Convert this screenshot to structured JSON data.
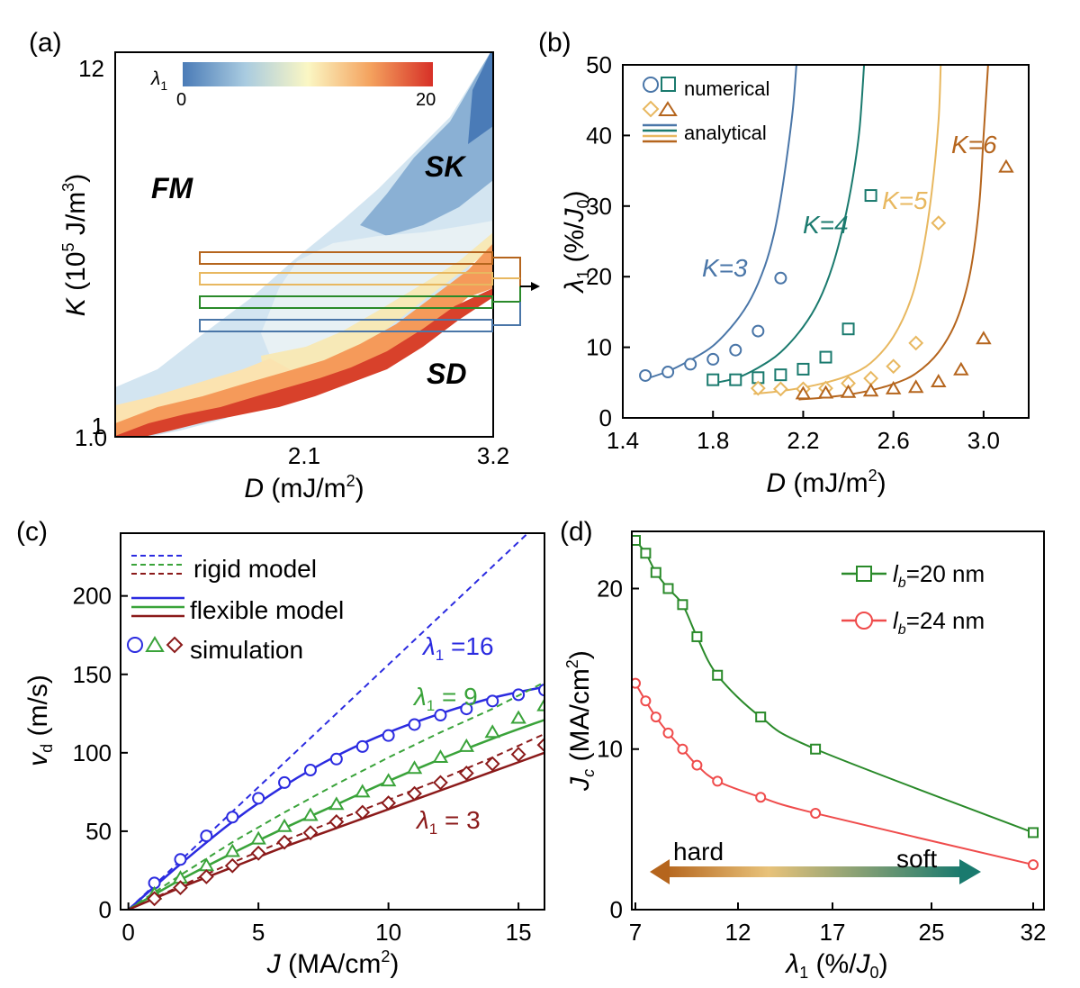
{
  "colors": {
    "blue": "#4a76a8",
    "teal": "#1a7a6e",
    "yellow": "#e8b860",
    "brown": "#b5651d",
    "sim_blue": "#2b2be0",
    "sim_green": "#3aa33a",
    "sim_darkred": "#8b1a1a",
    "green_d": "#2a8a2a",
    "red_d": "#ef4b4b"
  },
  "panel_a": {
    "label": "(a)",
    "xlabel_var": "D",
    "xlabel_unit": "(mJ/m",
    "xlabel_sup": "2",
    "xlabel_end": ")",
    "ylabel_var": "K",
    "ylabel_unit": "(10",
    "ylabel_sup": "5",
    "ylabel_end": "J/m",
    "ylabel_sup2": "3",
    "ylabel_close": ")",
    "xticks": [
      "1.0",
      "2.1",
      "3.2"
    ],
    "yticks": [
      "12",
      "1"
    ],
    "colorbar_label": "λ",
    "colorbar_sub": "1",
    "colorbar_min": "0",
    "colorbar_max": "20",
    "regions": [
      "FM",
      "SK",
      "SD"
    ]
  },
  "chart_data": [
    {
      "panel": "b",
      "type": "line",
      "label": "(b)",
      "xlabel": "D (mJ/m2)",
      "ylabel": "λ1 (%/J0)",
      "xlim": [
        1.4,
        3.2
      ],
      "ylim": [
        0,
        50
      ],
      "xticks": [
        "1.4",
        "1.8",
        "2.2",
        "2.6",
        "3.0"
      ],
      "yticks": [
        "0",
        "10",
        "20",
        "30",
        "40",
        "50"
      ],
      "legend": [
        "numerical",
        "analytical"
      ],
      "annotations": [
        "K=3",
        "K=4",
        "K=5",
        "K=6"
      ],
      "series": [
        {
          "name": "K=3",
          "color": "#4a76a8",
          "marker": "circle",
          "x": [
            1.5,
            1.6,
            1.7,
            1.8,
            1.9,
            2.0,
            2.1
          ],
          "values": [
            6.0,
            6.5,
            7.6,
            8.3,
            9.6,
            12.3,
            19.8
          ],
          "curve_x": [
            1.49,
            1.6,
            1.7,
            1.8,
            1.9,
            1.97,
            2.03,
            2.07,
            2.1,
            2.13,
            2.155,
            2.17
          ],
          "curve_y": [
            5.4,
            6.6,
            8.2,
            10.2,
            13.6,
            17.0,
            21.5,
            26.0,
            31.0,
            37.5,
            44.0,
            50.0
          ]
        },
        {
          "name": "K=4",
          "color": "#1a7a6e",
          "marker": "square",
          "x": [
            1.8,
            1.9,
            2.0,
            2.1,
            2.2,
            2.3,
            2.4,
            2.5
          ],
          "values": [
            5.4,
            5.4,
            5.7,
            6.1,
            6.9,
            8.6,
            12.6,
            31.5
          ],
          "curve_x": [
            1.78,
            1.9,
            2.0,
            2.1,
            2.2,
            2.27,
            2.33,
            2.38,
            2.42,
            2.45,
            2.47
          ],
          "curve_y": [
            4.8,
            5.6,
            7.1,
            9.3,
            12.9,
            16.6,
            21.5,
            27.5,
            34.0,
            41.0,
            50.0
          ]
        },
        {
          "name": "K=5",
          "color": "#e8b860",
          "marker": "diamond",
          "x": [
            2.0,
            2.1,
            2.2,
            2.3,
            2.4,
            2.5,
            2.6,
            2.7,
            2.8
          ],
          "values": [
            4.2,
            4.1,
            4.1,
            4.2,
            4.9,
            5.6,
            7.3,
            10.6,
            27.6
          ],
          "curve_x": [
            1.98,
            2.1,
            2.2,
            2.3,
            2.4,
            2.5,
            2.6,
            2.68,
            2.73,
            2.77,
            2.8,
            2.81
          ],
          "curve_y": [
            3.4,
            3.8,
            4.3,
            5.0,
            6.0,
            7.8,
            11.5,
            17.0,
            23.5,
            32.0,
            42.0,
            50.0
          ]
        },
        {
          "name": "K=6",
          "color": "#b5651d",
          "marker": "triangle",
          "x": [
            2.2,
            2.3,
            2.4,
            2.5,
            2.6,
            2.7,
            2.8,
            2.9,
            3.0,
            3.1
          ],
          "values": [
            3.4,
            3.5,
            3.6,
            3.8,
            4.1,
            4.3,
            5.1,
            6.8,
            11.2,
            35.5
          ],
          "curve_x": [
            2.18,
            2.3,
            2.4,
            2.5,
            2.6,
            2.7,
            2.8,
            2.88,
            2.94,
            2.98,
            3.0,
            3.02
          ],
          "curve_y": [
            2.6,
            2.9,
            3.3,
            3.9,
            4.8,
            6.3,
            9.3,
            13.8,
            20.5,
            30.0,
            40.0,
            50.0
          ]
        }
      ]
    },
    {
      "panel": "c",
      "type": "line",
      "label": "(c)",
      "xlabel": "J (MA/cm2)",
      "ylabel": "vd (m/s)",
      "xlim": [
        -0.3,
        16
      ],
      "ylim": [
        0,
        240
      ],
      "xticks": [
        "0",
        "5",
        "10",
        "15"
      ],
      "yticks": [
        "0",
        "50",
        "100",
        "150",
        "200"
      ],
      "legend": [
        "rigid model",
        "flexible model",
        "simulation"
      ],
      "annotations": [
        "λ1 =16",
        "λ1 = 9",
        "λ1 = 3"
      ],
      "series": [
        {
          "name": "λ1 =16",
          "color": "#2b2be0",
          "rigid_x": [
            0,
            16
          ],
          "rigid_y": [
            0,
            250
          ],
          "flexible_x": [
            0,
            2,
            4,
            6,
            8,
            10,
            12,
            14,
            16
          ],
          "flexible_y": [
            0,
            29,
            56,
            79,
            98,
            113,
            125,
            135,
            142
          ],
          "sim_x": [
            1,
            2,
            3,
            4,
            5,
            6,
            7,
            8,
            9,
            10,
            11,
            12,
            13,
            14,
            15,
            16
          ],
          "sim_y": [
            17,
            32,
            47,
            59,
            71,
            81,
            89,
            96,
            104,
            111,
            118,
            124,
            128,
            133,
            137,
            140
          ]
        },
        {
          "name": "λ1 = 9",
          "color": "#3aa33a",
          "rigid_x": [
            0,
            2,
            4,
            6,
            8,
            10,
            12,
            14,
            16
          ],
          "rigid_y": [
            0,
            22,
            43,
            62,
            80,
            97,
            113,
            128,
            145
          ],
          "flexible_x": [
            0,
            2,
            4,
            6,
            8,
            10,
            12,
            14,
            16
          ],
          "flexible_y": [
            0,
            19,
            36,
            52,
            67,
            82,
            96,
            109,
            121
          ],
          "sim_x": [
            1,
            2,
            3,
            4,
            5,
            6,
            7,
            8,
            9,
            10,
            11,
            12,
            13,
            14,
            15,
            16
          ],
          "sim_y": [
            10,
            20,
            28,
            37,
            45,
            53,
            60,
            67,
            75,
            82,
            90,
            97,
            104,
            113,
            122,
            130
          ]
        },
        {
          "name": "λ1 = 3",
          "color": "#8b1a1a",
          "rigid_x": [
            0,
            2,
            4,
            6,
            8,
            10,
            12,
            14,
            16
          ],
          "rigid_y": [
            0,
            15,
            30,
            44,
            57,
            70,
            83,
            97,
            112
          ],
          "flexible_x": [
            0,
            2,
            4,
            6,
            8,
            10,
            12,
            14,
            16
          ],
          "flexible_y": [
            0,
            14,
            27,
            40,
            52,
            64,
            76,
            88,
            100
          ],
          "sim_x": [
            1,
            2,
            3,
            4,
            5,
            6,
            7,
            8,
            9,
            10,
            11,
            12,
            13,
            14,
            15,
            16
          ],
          "sim_y": [
            7,
            14,
            21,
            28,
            36,
            43,
            49,
            56,
            62,
            68,
            74,
            81,
            87,
            93,
            99,
            105
          ]
        }
      ]
    },
    {
      "panel": "d",
      "type": "line",
      "label": "(d)",
      "xlabel": "λ1 (%/J0)",
      "ylabel": "Jc (MA/cm2)",
      "xlim": [
        7,
        32
      ],
      "ylim": [
        0,
        23
      ],
      "xticks": [
        "7",
        "12",
        "17",
        "25",
        "32"
      ],
      "yticks": [
        "0",
        "10",
        "20"
      ],
      "arrow_labels": [
        "hard",
        "soft"
      ],
      "series": [
        {
          "name": "lb=20 nm",
          "color": "#2a8a2a",
          "marker": "square",
          "x": [
            7,
            7.5,
            8,
            8.6,
            9.3,
            10,
            11,
            13.2,
            16.1,
            32
          ],
          "values": [
            23,
            22.2,
            21,
            20,
            19,
            17,
            14.6,
            12,
            10,
            4.8
          ]
        },
        {
          "name": "lb=24 nm",
          "color": "#ef4b4b",
          "marker": "circle",
          "x": [
            7,
            7.5,
            8,
            8.6,
            9.3,
            10,
            11,
            13.2,
            16.1,
            32
          ],
          "values": [
            14.1,
            13,
            12,
            11,
            10,
            9,
            8,
            7,
            6,
            2.8
          ]
        }
      ]
    }
  ]
}
